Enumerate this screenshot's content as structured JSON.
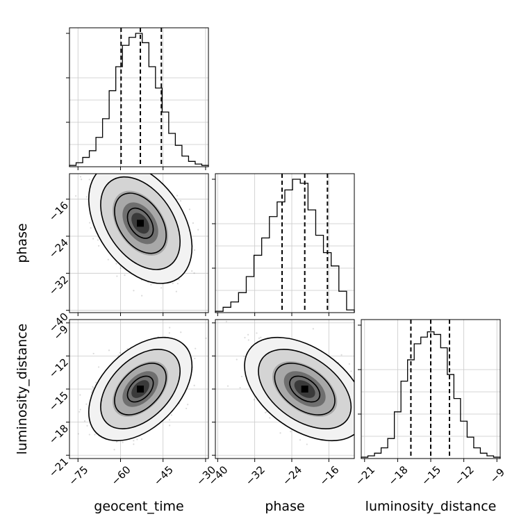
{
  "chart_data": {
    "type": "corner",
    "parameters": [
      "geocent_time",
      "phase",
      "luminosity_distance"
    ],
    "ranges": {
      "geocent_time": [
        -78,
        -29
      ],
      "phase": [
        -40.5,
        -10.5
      ],
      "luminosity_distance": [
        -21.3,
        -8.7
      ]
    },
    "ticks": {
      "geocent_time": [
        -75,
        -60,
        -45,
        -30
      ],
      "phase": [
        -40,
        -32,
        -24,
        -16
      ],
      "luminosity_distance": [
        -21,
        -18,
        -15,
        -12,
        -9
      ]
    },
    "tick_labels": {
      "geocent_time": [
        "−75",
        "−60",
        "−45",
        "−30"
      ],
      "phase": [
        "−40",
        "−32",
        "−24",
        "−16"
      ],
      "luminosity_distance": [
        "−21",
        "−18",
        "−15",
        "−12",
        "−9"
      ]
    },
    "quantiles": {
      "geocent_time": [
        -59.8,
        -53.0,
        -45.6
      ],
      "phase": [
        -26.1,
        -21.2,
        -16.3
      ],
      "luminosity_distance": [
        -16.8,
        -15.0,
        -13.3
      ]
    },
    "centers": {
      "geocent_time": -53.0,
      "phase": -21.2,
      "luminosity_distance": -15.0
    },
    "sigmas": {
      "geocent_time": 7.0,
      "phase": 5.0,
      "luminosity_distance": 1.8
    },
    "correlations": {
      "geocent_time|phase": -0.4,
      "geocent_time|luminosity_distance": 0.45,
      "phase|luminosity_distance": -0.45
    },
    "histograms": {
      "geocent_time": [
        0.01,
        0.03,
        0.07,
        0.12,
        0.22,
        0.36,
        0.57,
        0.75,
        0.91,
        0.97,
        1.0,
        0.93,
        0.75,
        0.59,
        0.41,
        0.25,
        0.16,
        0.08,
        0.04,
        0.02,
        0.01
      ],
      "phase": [
        0.01,
        0.04,
        0.08,
        0.15,
        0.27,
        0.43,
        0.56,
        0.72,
        0.83,
        0.92,
        1.0,
        0.97,
        0.77,
        0.58,
        0.45,
        0.35,
        0.16,
        0.02
      ],
      "luminosity_distance": [
        0.01,
        0.02,
        0.04,
        0.08,
        0.15,
        0.35,
        0.58,
        0.74,
        0.86,
        0.91,
        0.95,
        0.93,
        0.83,
        0.63,
        0.45,
        0.28,
        0.16,
        0.08,
        0.04,
        0.02,
        0.01
      ]
    },
    "grid": true,
    "xlabel": [
      "geocent_time",
      "phase",
      "luminosity_distance"
    ],
    "ylabel": [
      "phase",
      "luminosity_distance"
    ]
  }
}
